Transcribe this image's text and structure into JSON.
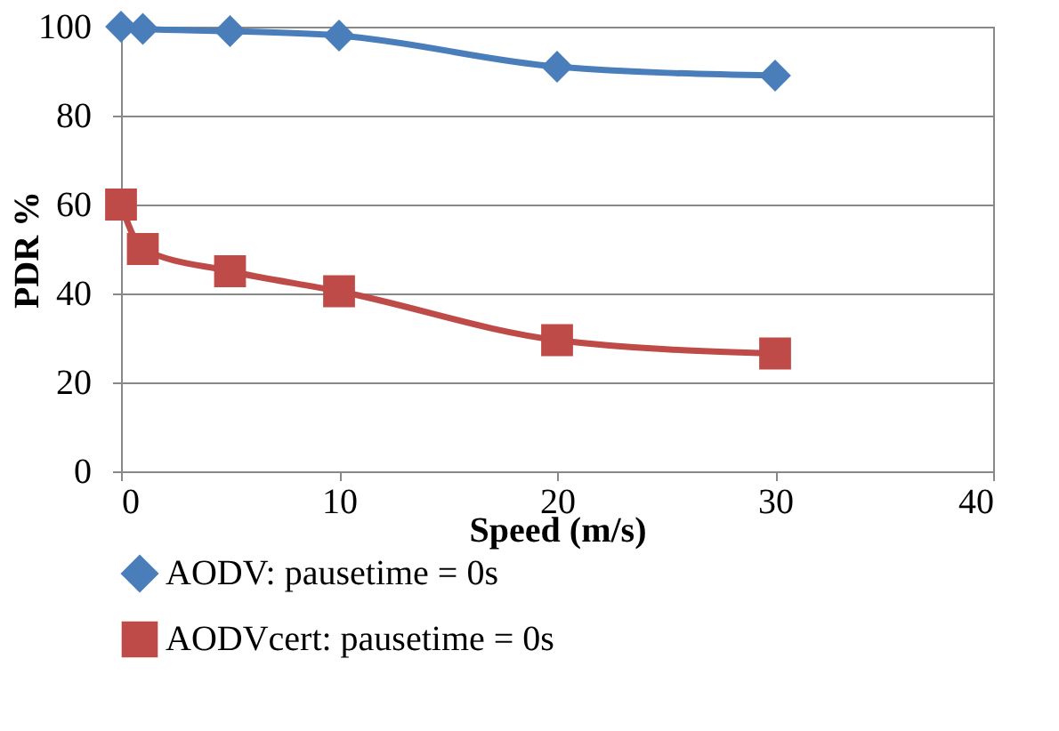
{
  "chart_data": {
    "type": "line",
    "xlabel": "Speed (m/s)",
    "ylabel": "PDR %",
    "x": [
      0,
      1,
      5,
      10,
      20,
      30
    ],
    "series": [
      {
        "name": "AODV: pausetime = 0s",
        "color": "#4a7ebb",
        "marker": "diamond",
        "values": [
          100,
          99.5,
          99,
          98,
          91,
          89
        ]
      },
      {
        "name": "AODVcert: pausetime = 0s",
        "color": "#be4b48",
        "marker": "square",
        "values": [
          60,
          50,
          45,
          40.5,
          29.5,
          26.5
        ]
      }
    ],
    "xlim": [
      0,
      40
    ],
    "xticks": [
      0,
      10,
      20,
      30,
      40
    ],
    "ylim": [
      0,
      100
    ],
    "yticks": [
      0,
      20,
      40,
      60,
      80,
      100
    ],
    "grid": "y",
    "legend": "bottom",
    "line_style": "solid"
  }
}
